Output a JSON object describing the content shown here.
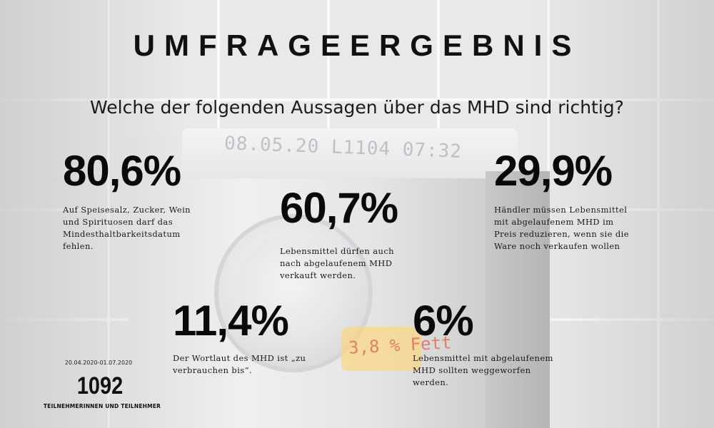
{
  "title": "UMFRAGEERGEBNIS",
  "question": "Welche der folgenden Aussagen über das MHD sind richtig?",
  "background": {
    "carton_stamp": "08.05.20 L1104 07:32",
    "sticker_text": "3,8 % Fett"
  },
  "stats": [
    {
      "value": "80,6%",
      "text": "Auf Speisesalz, Zucker, Wein und Spirituosen darf das Mindesthaltbarkeitsdatum fehlen."
    },
    {
      "value": "60,7%",
      "text": "Lebensmittel dürfen auch nach abgelaufenem MHD verkauft werden."
    },
    {
      "value": "29,9%",
      "text": "Händler müssen Lebensmittel mit abgelaufenem MHD im Preis reduzieren, wenn sie die Ware noch verkaufen wollen"
    },
    {
      "value": "11,4%",
      "text": "Der Wortlaut des MHD ist „zu verbrauchen bis“."
    },
    {
      "value": "6%",
      "text": "Lebensmittel mit abgelaufenem MHD sollten weggeworfen werden."
    }
  ],
  "footer": {
    "period": "20.04.2020-01.07.2020",
    "participants_count": "1092",
    "participants_label": "TEILNEHMERINNEN UND TEILNEHMER"
  }
}
